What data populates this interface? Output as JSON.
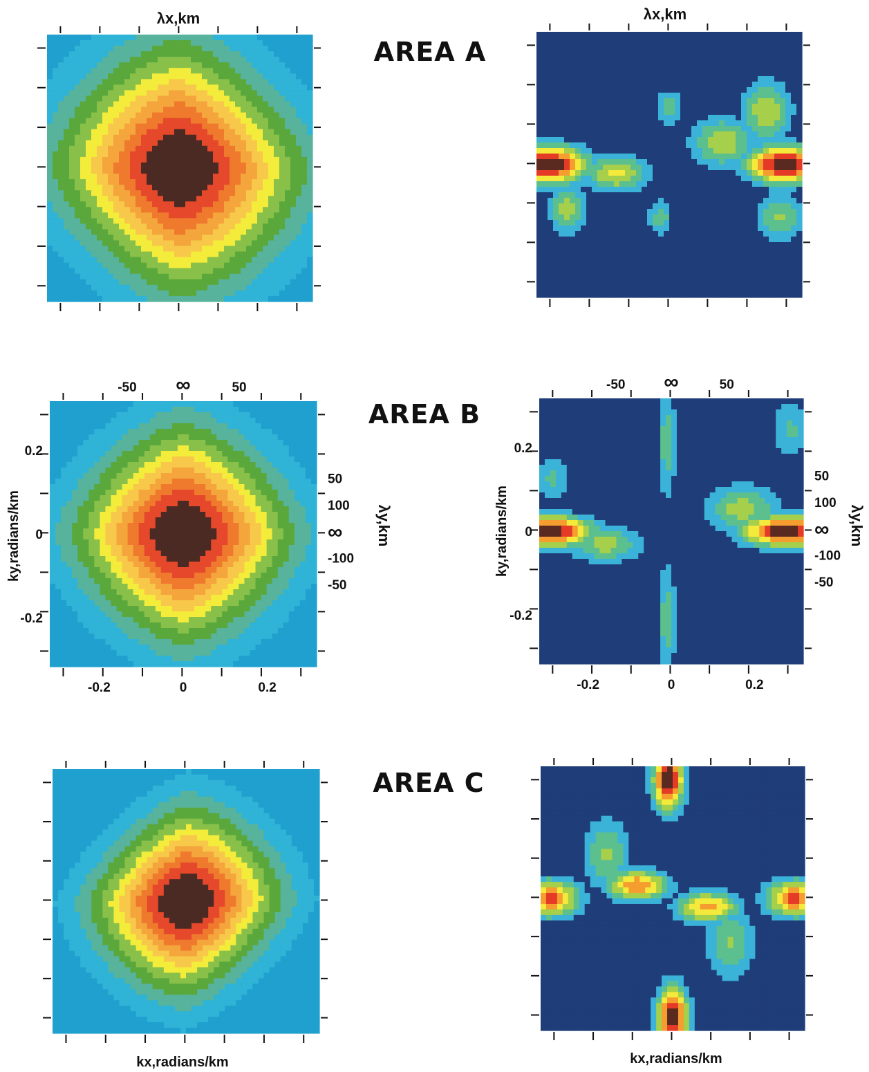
{
  "figure": {
    "area_labels": [
      "AREA A",
      "AREA B",
      "AREA C"
    ],
    "top_axis_label": "λx,km",
    "left_axis_label": "ky,radians/km",
    "right_axis_label": "λy,km",
    "bottom_axis_label": "kx,radians/km"
  },
  "colors": {
    "left_levels": [
      "#1fa0cf",
      "#2fb3d6",
      "#57b39b",
      "#5aa83c",
      "#88c04a",
      "#f4ec3a",
      "#f8c84a",
      "#f4a53c",
      "#ef7a2e",
      "#e5482a",
      "#4b2a24"
    ],
    "right_levels": [
      "#1f3d78",
      "#3bb3d9",
      "#5cc08e",
      "#a6d04b",
      "#f4ea3c",
      "#f59d2e",
      "#e53a26",
      "#5a2a20"
    ]
  },
  "chart_data": [
    {
      "panel": "AREA A - left",
      "type": "heatmap",
      "title": "",
      "xlabel": "λx,km",
      "ylabel": "",
      "xlim": [
        -0.3,
        0.3
      ],
      "ylim": [
        -0.3,
        0.3
      ],
      "x_ticks": [],
      "y_ticks": [],
      "field": {
        "kind": "gaussian",
        "peak": [
          0.0,
          0.0
        ],
        "spread": 0.16,
        "levels": 11,
        "aniso": 0.12
      }
    },
    {
      "panel": "AREA A - right",
      "type": "heatmap",
      "title": "",
      "xlabel": "λx,km",
      "ylabel": "",
      "xlim": [
        -0.3,
        0.3
      ],
      "ylim": [
        -0.3,
        0.3
      ],
      "x_ticks": [],
      "y_ticks": [],
      "field": {
        "kind": "blobs",
        "levels": 8,
        "blobs": [
          [
            -0.27,
            0.0,
            0.06,
            0.03,
            1.0
          ],
          [
            0.26,
            0.0,
            0.06,
            0.03,
            1.0
          ],
          [
            -0.12,
            -0.02,
            0.05,
            0.03,
            0.55
          ],
          [
            0.12,
            0.05,
            0.05,
            0.04,
            0.5
          ],
          [
            0.22,
            0.12,
            0.04,
            0.05,
            0.5
          ],
          [
            -0.23,
            -0.1,
            0.03,
            0.04,
            0.45
          ],
          [
            0.0,
            0.13,
            0.02,
            0.03,
            0.35
          ],
          [
            -0.02,
            -0.12,
            0.02,
            0.03,
            0.35
          ],
          [
            0.25,
            -0.12,
            0.04,
            0.04,
            0.4
          ]
        ]
      }
    },
    {
      "panel": "AREA B - left",
      "type": "heatmap",
      "title": "",
      "xlabel": "",
      "ylabel": "ky,radians/km",
      "xlim": [
        -0.3,
        0.3
      ],
      "ylim": [
        -0.3,
        0.3
      ],
      "x_ticks": [
        "-0.2",
        "0",
        "0.2"
      ],
      "y_ticks": [
        "0.2",
        "0",
        "-0.2"
      ],
      "top_ticks": [
        "-50",
        "∞",
        "50"
      ],
      "right_ticks": [
        "50",
        "100",
        "∞",
        "-100",
        "-50"
      ],
      "field": {
        "kind": "gaussian",
        "peak": [
          0.0,
          0.0
        ],
        "spread": 0.14,
        "levels": 11,
        "aniso": 0.0
      }
    },
    {
      "panel": "AREA B - right",
      "type": "heatmap",
      "title": "",
      "xlabel": "",
      "ylabel": "ky,radians/km",
      "xlim": [
        -0.3,
        0.3
      ],
      "ylim": [
        -0.3,
        0.3
      ],
      "x_ticks": [
        "-0.2",
        "0",
        "0.2"
      ],
      "y_ticks": [
        "0.2",
        "0",
        "-0.2"
      ],
      "top_ticks": [
        "-50",
        "∞",
        "50"
      ],
      "right_ticks": [
        "50",
        "100",
        "∞",
        "-100",
        "-50"
      ],
      "field": {
        "kind": "blobs",
        "levels": 8,
        "blobs": [
          [
            -0.28,
            0.0,
            0.07,
            0.025,
            1.0
          ],
          [
            0.26,
            0.0,
            0.07,
            0.025,
            1.0
          ],
          [
            -0.15,
            -0.03,
            0.06,
            0.03,
            0.45
          ],
          [
            0.16,
            0.05,
            0.06,
            0.04,
            0.45
          ],
          [
            -0.01,
            0.2,
            0.015,
            0.1,
            0.35
          ],
          [
            -0.01,
            -0.2,
            0.015,
            0.1,
            0.35
          ],
          [
            0.27,
            0.23,
            0.03,
            0.05,
            0.3
          ],
          [
            -0.27,
            0.12,
            0.03,
            0.04,
            0.3
          ]
        ]
      }
    },
    {
      "panel": "AREA C - left",
      "type": "heatmap",
      "title": "",
      "xlabel": "kx,radians/km",
      "ylabel": "",
      "xlim": [
        -0.3,
        0.3
      ],
      "ylim": [
        -0.3,
        0.3
      ],
      "x_ticks": [],
      "y_ticks": [],
      "field": {
        "kind": "gaussian",
        "peak": [
          0.0,
          0.0
        ],
        "spread": 0.12,
        "levels": 11,
        "aniso": -0.2
      }
    },
    {
      "panel": "AREA C - right",
      "type": "heatmap",
      "title": "",
      "xlabel": "kx,radians/km",
      "ylabel": "",
      "xlim": [
        -0.3,
        0.3
      ],
      "ylim": [
        -0.3,
        0.3
      ],
      "x_ticks": [],
      "y_ticks": [],
      "field": {
        "kind": "blobs",
        "levels": 8,
        "blobs": [
          [
            -0.01,
            0.27,
            0.025,
            0.05,
            1.0
          ],
          [
            0.0,
            -0.27,
            0.025,
            0.05,
            1.0
          ],
          [
            -0.28,
            0.0,
            0.05,
            0.03,
            0.8
          ],
          [
            0.28,
            0.0,
            0.05,
            0.03,
            0.8
          ],
          [
            -0.08,
            0.03,
            0.05,
            0.025,
            0.75
          ],
          [
            0.08,
            -0.02,
            0.05,
            0.025,
            0.7
          ],
          [
            -0.15,
            0.1,
            0.04,
            0.06,
            0.4
          ],
          [
            0.13,
            -0.1,
            0.04,
            0.06,
            0.4
          ]
        ]
      }
    }
  ]
}
